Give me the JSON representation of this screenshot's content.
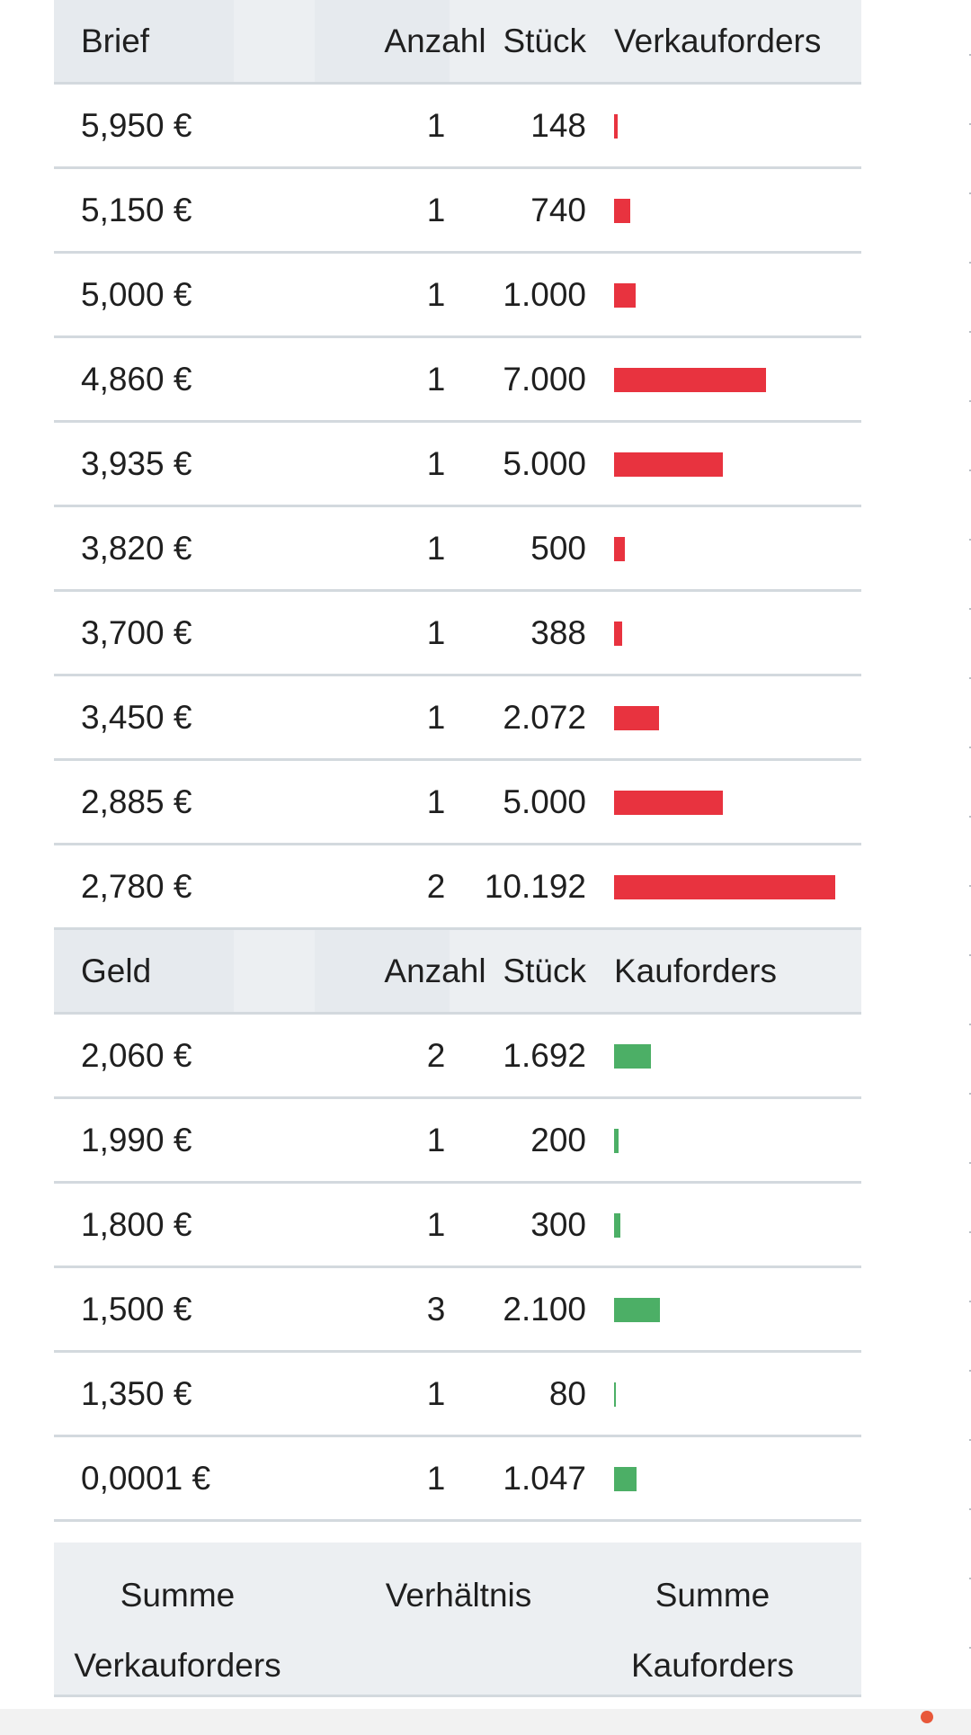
{
  "ask_table": {
    "header": {
      "price": "Brief",
      "count": "Anzahl",
      "qty": "Stück",
      "orders": "Verkauforders"
    },
    "rows": [
      {
        "price": "5,950 €",
        "count": "1",
        "qty": "148",
        "volume": 148
      },
      {
        "price": "5,150 €",
        "count": "1",
        "qty": "740",
        "volume": 740
      },
      {
        "price": "5,000 €",
        "count": "1",
        "qty": "1.000",
        "volume": 1000
      },
      {
        "price": "4,860 €",
        "count": "1",
        "qty": "7.000",
        "volume": 7000
      },
      {
        "price": "3,935 €",
        "count": "1",
        "qty": "5.000",
        "volume": 5000
      },
      {
        "price": "3,820 €",
        "count": "1",
        "qty": "500",
        "volume": 500
      },
      {
        "price": "3,700 €",
        "count": "1",
        "qty": "388",
        "volume": 388
      },
      {
        "price": "3,450 €",
        "count": "1",
        "qty": "2.072",
        "volume": 2072
      },
      {
        "price": "2,885 €",
        "count": "1",
        "qty": "5.000",
        "volume": 5000
      },
      {
        "price": "2,780 €",
        "count": "2",
        "qty": "10.192",
        "volume": 10192
      }
    ]
  },
  "bid_table": {
    "header": {
      "price": "Geld",
      "count": "Anzahl",
      "qty": "Stück",
      "orders": "Kauforders"
    },
    "rows": [
      {
        "price": "2,060 €",
        "count": "2",
        "qty": "1.692",
        "volume": 1692
      },
      {
        "price": "1,990 €",
        "count": "1",
        "qty": "200",
        "volume": 200
      },
      {
        "price": "1,800 €",
        "count": "1",
        "qty": "300",
        "volume": 300
      },
      {
        "price": "1,500 €",
        "count": "3",
        "qty": "2.100",
        "volume": 2100
      },
      {
        "price": "1,350 €",
        "count": "1",
        "qty": "80",
        "volume": 80
      },
      {
        "price": "0,0001 €",
        "count": "1",
        "qty": "1.047",
        "volume": 1047
      }
    ]
  },
  "summary": {
    "sell_total_label_line1": "Summe",
    "sell_total_label_line2": "Verkauforders",
    "ratio_label": "Verhältnis",
    "buy_total_label_line1": "Summe",
    "buy_total_label_line2": "Kauforders"
  },
  "colors": {
    "ask_bar": "#e8333f",
    "bid_bar": "#4caf66",
    "header_bg": "#eceff2",
    "row_border": "#d3d9de"
  },
  "bar_scale_max_volume": 10192
}
